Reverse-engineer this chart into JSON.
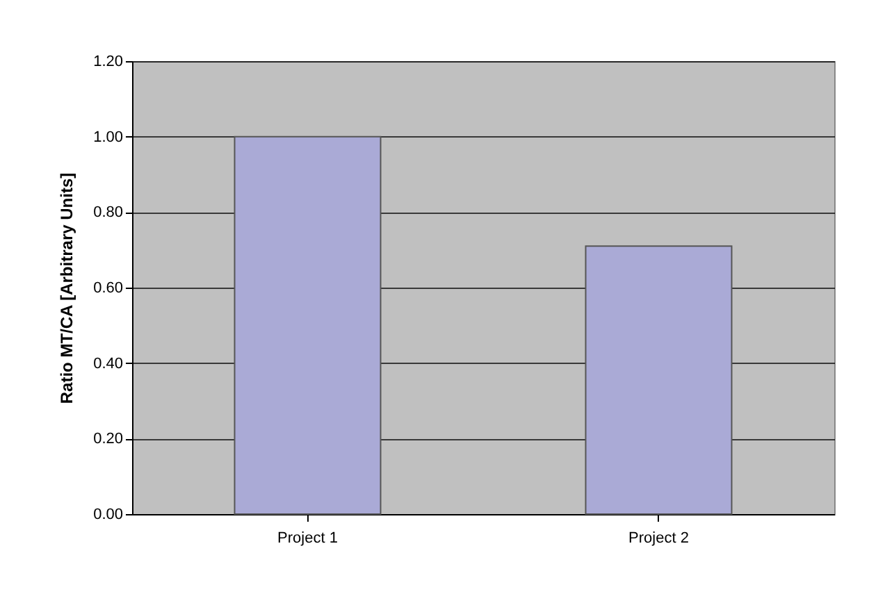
{
  "chart_data": {
    "type": "bar",
    "ylabel": "Ratio MT/CA [Arbitrary Units]",
    "categories": [
      "Project 1",
      "Project 2"
    ],
    "values": [
      1.0,
      0.71
    ],
    "color": "#aaaad6",
    "ylim": [
      0,
      1.2
    ],
    "yticks": [
      {
        "value": 0,
        "label": "0.00"
      },
      {
        "value": 0.2,
        "label": "0.20"
      },
      {
        "value": 0.4,
        "label": "0.40"
      },
      {
        "value": 0.6,
        "label": "0.60"
      },
      {
        "value": 0.8,
        "label": "0.80"
      },
      {
        "value": 1.0,
        "label": "1.00"
      },
      {
        "value": 1.2,
        "label": "1.20"
      }
    ],
    "grid": "y"
  }
}
